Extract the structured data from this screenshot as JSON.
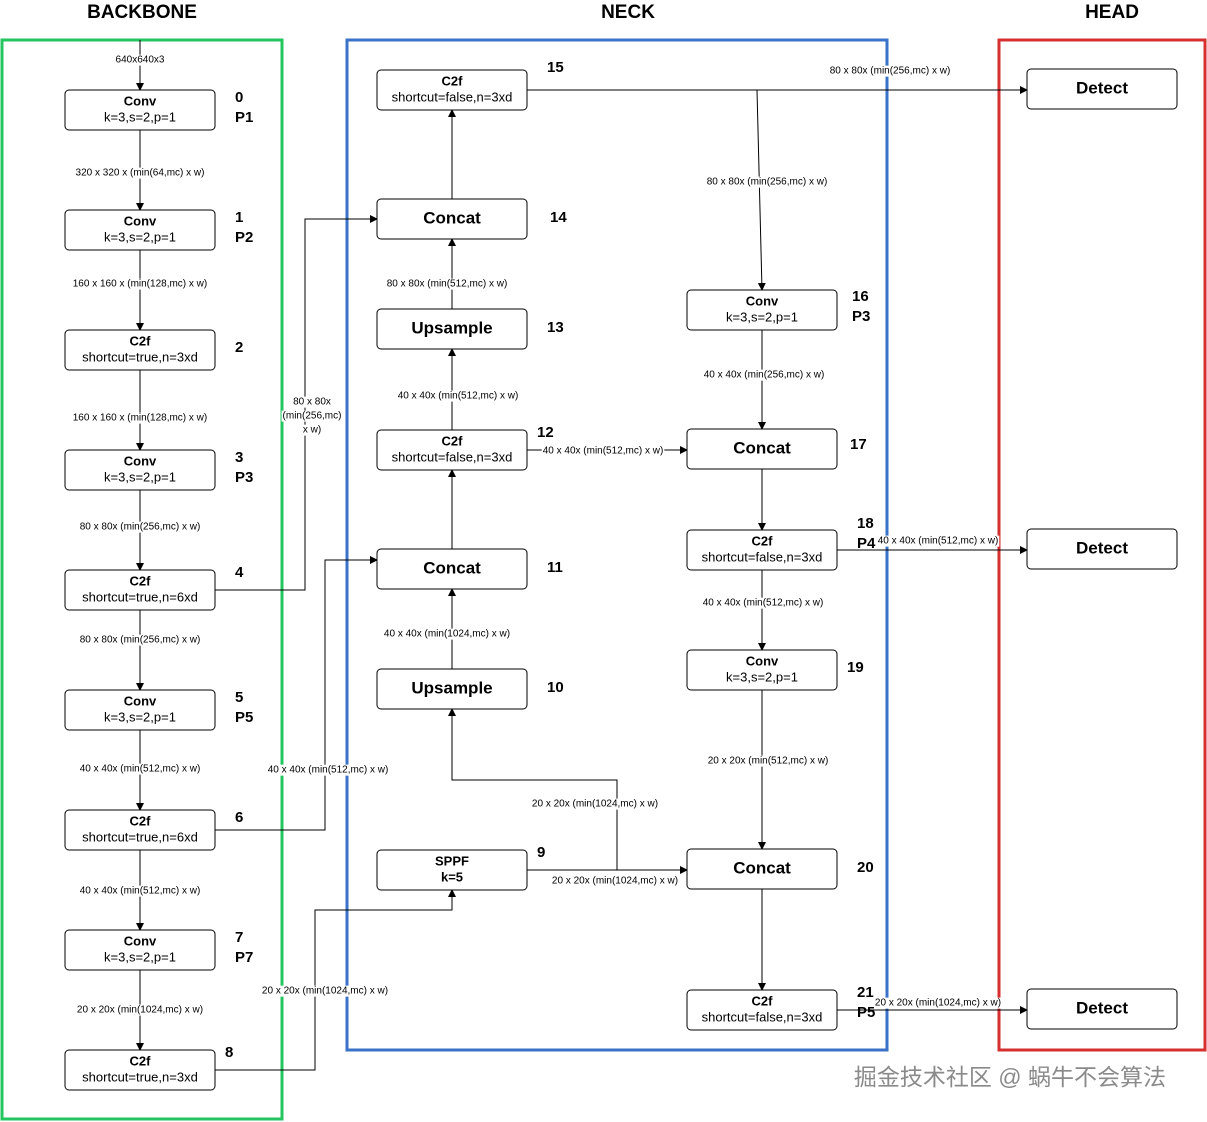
{
  "titles": {
    "backbone": "BACKBONE",
    "neck": "NECK",
    "head": "HEAD"
  },
  "nodes": [
    {
      "index": "0",
      "label": "Conv",
      "params": "k=3,s=2,p=1",
      "level": "P1"
    },
    {
      "index": "1",
      "label": "Conv",
      "params": "k=3,s=2,p=1",
      "level": "P2"
    },
    {
      "index": "2",
      "label": "C2f",
      "params": "shortcut=true,n=3xd"
    },
    {
      "index": "3",
      "label": "Conv",
      "params": "k=3,s=2,p=1",
      "level": "P3"
    },
    {
      "index": "4",
      "label": "C2f",
      "params": "shortcut=true,n=6xd"
    },
    {
      "index": "5",
      "label": "Conv",
      "params": "k=3,s=2,p=1",
      "level": "P5"
    },
    {
      "index": "6",
      "label": "C2f",
      "params": "shortcut=true,n=6xd"
    },
    {
      "index": "7",
      "label": "Conv",
      "params": "k=3,s=2,p=1",
      "level": "P7"
    },
    {
      "index": "8",
      "label": "C2f",
      "params": "shortcut=true,n=3xd"
    },
    {
      "index": "9",
      "label": "SPPF",
      "params": "k=5"
    },
    {
      "index": "10",
      "label": "Upsample"
    },
    {
      "index": "11",
      "label": "Concat"
    },
    {
      "index": "12",
      "label": "C2f",
      "params": "shortcut=false,n=3xd"
    },
    {
      "index": "13",
      "label": "Upsample"
    },
    {
      "index": "14",
      "label": "Concat"
    },
    {
      "index": "15",
      "label": "C2f",
      "params": "shortcut=false,n=3xd"
    },
    {
      "index": "16",
      "label": "Conv",
      "params": "k=3,s=2,p=1",
      "level": "P3"
    },
    {
      "index": "17",
      "label": "Concat"
    },
    {
      "index": "18",
      "label": "C2f",
      "params": "shortcut=false,n=3xd",
      "level": "P4"
    },
    {
      "index": "19",
      "label": "Conv",
      "params": "k=3,s=2,p=1"
    },
    {
      "index": "20",
      "label": "Concat"
    },
    {
      "index": "21",
      "label": "C2f",
      "params": "shortcut=false,n=3xd",
      "level": "P5"
    },
    {
      "label": "Detect"
    },
    {
      "label": "Detect"
    },
    {
      "label": "Detect"
    }
  ],
  "edge_labels": [
    [
      "640x640x3"
    ],
    [
      "320 x 320 x (min(64,mc) x w)"
    ],
    [
      "160 x 160 x (min(128,mc) x w)"
    ],
    [
      "160 x 160 x (min(128,mc) x w)"
    ],
    [
      "80 x 80x (min(256,mc) x w)"
    ],
    [
      "80 x 80x (min(256,mc) x w)"
    ],
    [
      "40 x 40x (min(512,mc) x w)"
    ],
    [
      "40 x 40x (min(512,mc) x w)"
    ],
    [
      "20 x 20x (min(1024,mc) x w)"
    ],
    [
      "80 x 80x",
      "(min(256,mc)",
      "x w)"
    ],
    [
      "40 x 40x (min(512,mc) x w)"
    ],
    [
      "20 x 20x (min(1024,mc) x w)"
    ],
    [
      "80 x 80x (min(512,mc) x w)"
    ],
    [
      "40 x 40x (min(512,mc) x w)"
    ],
    [
      "40 x 40x (min(1024,mc) x w)"
    ],
    [
      "20 x 20x (min(1024,mc) x w)"
    ],
    [
      "20 x 20x (min(1024,mc) x w)"
    ],
    [
      "40 x 40x (min(512,mc) x w)"
    ],
    [
      "80 x 80x (min(256,mc) x w)"
    ],
    [
      "80 x 80x (min(256,mc) x w)"
    ],
    [
      "40 x 40x (min(256,mc) x w)"
    ],
    [
      "40 x 40x (min(512,mc) x w)"
    ],
    [
      "40 x 40x (min(512,mc) x w)"
    ],
    [
      "20 x 20x (min(512,mc) x w)"
    ],
    [
      "20 x 20x (min(1024,mc) x w)"
    ]
  ],
  "watermark": "掘金技术社区 @ 蜗牛不会算法"
}
